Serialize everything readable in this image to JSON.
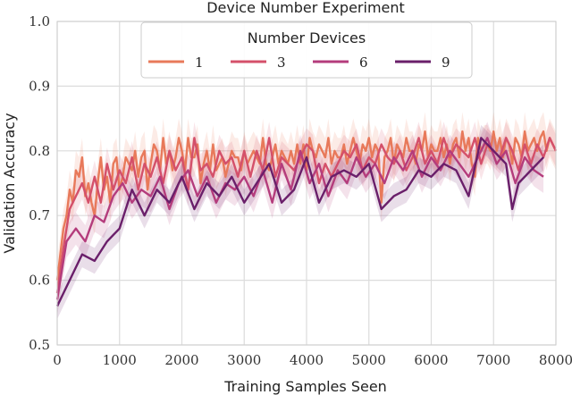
{
  "chart_data": {
    "type": "line",
    "title": "Device Number Experiment",
    "xlabel": "Training Samples Seen",
    "ylabel": "Validation Accuracy",
    "xlim": [
      0,
      8000
    ],
    "ylim": [
      0.5,
      1.0
    ],
    "xticks": [
      0,
      1000,
      2000,
      3000,
      4000,
      5000,
      6000,
      7000,
      8000
    ],
    "yticks": [
      0.5,
      0.6,
      0.7,
      0.8,
      0.9,
      1.0
    ],
    "xtick_labels": [
      "0",
      "1000",
      "2000",
      "3000",
      "4000",
      "5000",
      "6000",
      "7000",
      "8000"
    ],
    "ytick_labels": [
      "0.5",
      "0.6",
      "0.7",
      "0.8",
      "0.9",
      "1.0"
    ],
    "grid": true,
    "legend": {
      "title": "Number Devices",
      "placement": "top-center"
    },
    "series": [
      {
        "name": "1",
        "color": "#e8795a",
        "band": 0.03,
        "x": [
          0,
          50,
          100,
          150,
          200,
          250,
          300,
          350,
          400,
          450,
          500,
          550,
          600,
          650,
          700,
          750,
          800,
          850,
          900,
          950,
          1000,
          1050,
          1100,
          1150,
          1200,
          1250,
          1300,
          1350,
          1400,
          1450,
          1500,
          1550,
          1600,
          1650,
          1700,
          1750,
          1800,
          1850,
          1900,
          1950,
          2000,
          2050,
          2100,
          2150,
          2200,
          2250,
          2300,
          2350,
          2400,
          2450,
          2500,
          2550,
          2600,
          2650,
          2700,
          2750,
          2800,
          2850,
          2900,
          2950,
          3000,
          3050,
          3100,
          3150,
          3200,
          3250,
          3300,
          3350,
          3400,
          3450,
          3500,
          3550,
          3600,
          3650,
          3700,
          3750,
          3800,
          3850,
          3900,
          3950,
          4000,
          4050,
          4100,
          4150,
          4200,
          4250,
          4300,
          4350,
          4400,
          4450,
          4500,
          4550,
          4600,
          4650,
          4700,
          4750,
          4800,
          4850,
          4900,
          4950,
          5000,
          5050,
          5100,
          5150,
          5200,
          5250,
          5300,
          5350,
          5400,
          5450,
          5500,
          5550,
          5600,
          5650,
          5700,
          5750,
          5800,
          5850,
          5900,
          5950,
          6000,
          6050,
          6100,
          6150,
          6200,
          6250,
          6300,
          6350,
          6400,
          6450,
          6500,
          6550,
          6600,
          6650,
          6700,
          6750,
          6800,
          6850,
          6900,
          6950,
          7000,
          7050,
          7100,
          7150,
          7200,
          7250,
          7300,
          7350,
          7400,
          7450,
          7500,
          7550,
          7600,
          7650,
          7700,
          7750,
          7800,
          7850,
          7900,
          7950,
          8000
        ],
        "y": [
          0.6,
          0.64,
          0.68,
          0.7,
          0.74,
          0.72,
          0.77,
          0.76,
          0.79,
          0.73,
          0.75,
          0.72,
          0.7,
          0.75,
          0.79,
          0.74,
          0.76,
          0.72,
          0.78,
          0.79,
          0.74,
          0.76,
          0.79,
          0.78,
          0.77,
          0.8,
          0.76,
          0.79,
          0.8,
          0.74,
          0.78,
          0.81,
          0.8,
          0.77,
          0.82,
          0.78,
          0.8,
          0.77,
          0.79,
          0.82,
          0.8,
          0.77,
          0.82,
          0.79,
          0.79,
          0.81,
          0.75,
          0.78,
          0.8,
          0.77,
          0.81,
          0.77,
          0.78,
          0.79,
          0.76,
          0.78,
          0.8,
          0.79,
          0.79,
          0.77,
          0.8,
          0.78,
          0.79,
          0.8,
          0.79,
          0.78,
          0.82,
          0.78,
          0.77,
          0.79,
          0.81,
          0.78,
          0.8,
          0.79,
          0.78,
          0.8,
          0.78,
          0.81,
          0.78,
          0.81,
          0.77,
          0.82,
          0.8,
          0.79,
          0.81,
          0.8,
          0.79,
          0.82,
          0.78,
          0.8,
          0.79,
          0.79,
          0.81,
          0.78,
          0.8,
          0.82,
          0.8,
          0.78,
          0.81,
          0.8,
          0.82,
          0.79,
          0.81,
          0.8,
          0.72,
          0.79,
          0.8,
          0.82,
          0.78,
          0.81,
          0.8,
          0.79,
          0.82,
          0.8,
          0.8,
          0.78,
          0.81,
          0.8,
          0.83,
          0.79,
          0.81,
          0.8,
          0.8,
          0.82,
          0.79,
          0.81,
          0.78,
          0.81,
          0.82,
          0.79,
          0.83,
          0.8,
          0.82,
          0.78,
          0.76,
          0.82,
          0.8,
          0.81,
          0.81,
          0.8,
          0.83,
          0.8,
          0.82,
          0.79,
          0.82,
          0.81,
          0.78,
          0.82,
          0.81,
          0.79,
          0.83,
          0.8,
          0.81,
          0.82,
          0.8,
          0.82,
          0.83,
          0.8,
          0.82,
          0.81,
          0.8
        ]
      },
      {
        "name": "3",
        "color": "#d4506a",
        "band": 0.025,
        "x": [
          0,
          100,
          200,
          300,
          400,
          500,
          600,
          700,
          800,
          900,
          1000,
          1100,
          1200,
          1300,
          1400,
          1500,
          1600,
          1700,
          1800,
          1900,
          2000,
          2100,
          2200,
          2300,
          2400,
          2500,
          2600,
          2700,
          2800,
          2900,
          3000,
          3100,
          3200,
          3300,
          3400,
          3500,
          3600,
          3700,
          3800,
          3900,
          4000,
          4100,
          4200,
          4300,
          4400,
          4500,
          4600,
          4700,
          4800,
          4900,
          5000,
          5100,
          5200,
          5300,
          5400,
          5500,
          5600,
          5700,
          5800,
          5900,
          6000,
          6100,
          6200,
          6300,
          6400,
          6500,
          6600,
          6700,
          6800,
          6900,
          7000,
          7100,
          7200,
          7300,
          7400,
          7500,
          7600,
          7700,
          7800,
          7900,
          8000
        ],
        "y": [
          0.58,
          0.65,
          0.71,
          0.73,
          0.75,
          0.72,
          0.76,
          0.72,
          0.78,
          0.74,
          0.77,
          0.75,
          0.79,
          0.74,
          0.78,
          0.76,
          0.79,
          0.75,
          0.8,
          0.77,
          0.79,
          0.74,
          0.82,
          0.77,
          0.78,
          0.76,
          0.8,
          0.78,
          0.79,
          0.76,
          0.8,
          0.76,
          0.8,
          0.77,
          0.82,
          0.76,
          0.79,
          0.78,
          0.77,
          0.79,
          0.81,
          0.8,
          0.75,
          0.78,
          0.76,
          0.78,
          0.8,
          0.79,
          0.81,
          0.77,
          0.79,
          0.78,
          0.81,
          0.79,
          0.78,
          0.8,
          0.77,
          0.79,
          0.82,
          0.78,
          0.8,
          0.78,
          0.82,
          0.79,
          0.81,
          0.8,
          0.79,
          0.82,
          0.78,
          0.81,
          0.8,
          0.79,
          0.82,
          0.8,
          0.77,
          0.81,
          0.78,
          0.81,
          0.79,
          0.82,
          0.8
        ]
      },
      {
        "name": "6",
        "color": "#b43c7c",
        "band": 0.025,
        "x": [
          0,
          150,
          300,
          450,
          600,
          750,
          900,
          1050,
          1200,
          1350,
          1500,
          1650,
          1800,
          1950,
          2100,
          2250,
          2400,
          2550,
          2700,
          2850,
          3000,
          3150,
          3300,
          3450,
          3600,
          3750,
          3900,
          4050,
          4200,
          4350,
          4500,
          4650,
          4800,
          4950,
          5100,
          5250,
          5400,
          5550,
          5700,
          5850,
          6000,
          6150,
          6300,
          6450,
          6600,
          6750,
          6900,
          7050,
          7200,
          7350,
          7500,
          7650,
          7800
        ],
        "y": [
          0.57,
          0.66,
          0.68,
          0.66,
          0.7,
          0.69,
          0.73,
          0.75,
          0.72,
          0.74,
          0.73,
          0.76,
          0.71,
          0.75,
          0.77,
          0.73,
          0.76,
          0.72,
          0.75,
          0.74,
          0.76,
          0.73,
          0.77,
          0.72,
          0.78,
          0.74,
          0.8,
          0.75,
          0.78,
          0.73,
          0.77,
          0.75,
          0.79,
          0.76,
          0.78,
          0.75,
          0.79,
          0.77,
          0.8,
          0.76,
          0.79,
          0.77,
          0.8,
          0.78,
          0.76,
          0.79,
          0.82,
          0.78,
          0.8,
          0.75,
          0.79,
          0.77,
          0.76
        ]
      },
      {
        "name": "9",
        "color": "#6a1f6a",
        "band": 0.02,
        "x": [
          0,
          200,
          400,
          600,
          800,
          1000,
          1200,
          1400,
          1600,
          1800,
          2000,
          2200,
          2400,
          2600,
          2800,
          3000,
          3200,
          3400,
          3600,
          3800,
          4000,
          4200,
          4400,
          4600,
          4800,
          5000,
          5200,
          5400,
          5600,
          5800,
          6000,
          6200,
          6400,
          6600,
          6800,
          7000,
          7200,
          7300,
          7400,
          7600,
          7800
        ],
        "y": [
          0.56,
          0.6,
          0.64,
          0.63,
          0.66,
          0.68,
          0.74,
          0.7,
          0.74,
          0.72,
          0.76,
          0.71,
          0.75,
          0.73,
          0.76,
          0.72,
          0.75,
          0.78,
          0.72,
          0.74,
          0.79,
          0.72,
          0.76,
          0.77,
          0.76,
          0.78,
          0.71,
          0.73,
          0.74,
          0.77,
          0.76,
          0.78,
          0.77,
          0.73,
          0.82,
          0.8,
          0.78,
          0.71,
          0.75,
          0.77,
          0.79
        ]
      }
    ]
  }
}
